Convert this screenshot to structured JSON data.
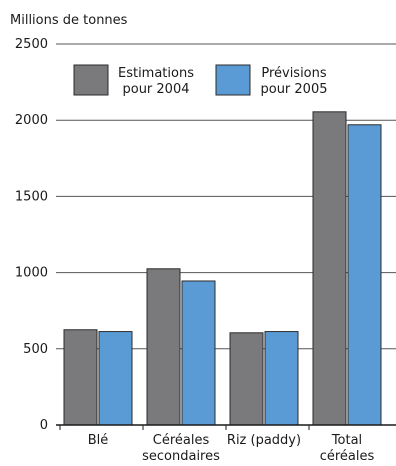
{
  "chart_data": {
    "type": "bar",
    "ylabel": "Millions de tonnes",
    "xlabel": "",
    "ylim": [
      0,
      2500
    ],
    "yticks": [
      0,
      500,
      1000,
      1500,
      2000,
      2500
    ],
    "grid": true,
    "legend_position": "top-left",
    "categories": [
      [
        "Blé"
      ],
      [
        "Céréales",
        "secondaires"
      ],
      [
        "Riz (paddy)"
      ],
      [
        "Total",
        "céréales"
      ]
    ],
    "series": [
      {
        "name": [
          "Estimations",
          "pour 2004"
        ],
        "color": "#7a7a7c",
        "values": [
          625,
          1025,
          605,
          2055
        ]
      },
      {
        "name": [
          "Prévisions",
          "pour 2005"
        ],
        "color": "#5b9bd5",
        "values": [
          613,
          945,
          613,
          1970
        ]
      }
    ]
  }
}
